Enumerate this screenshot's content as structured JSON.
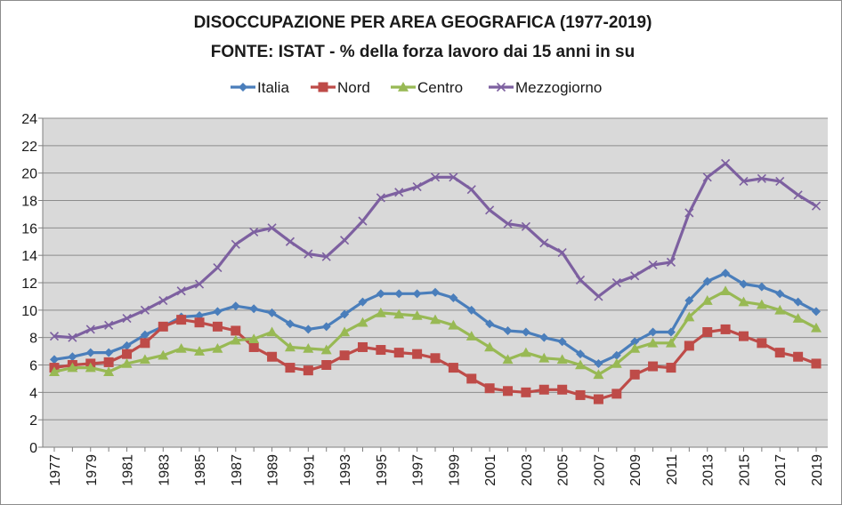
{
  "chart_data": {
    "type": "line",
    "title": "DISOCCUPAZIONE PER AREA GEOGRAFICA (1977-2019)",
    "subtitle": "FONTE: ISTAT - % della forza lavoro dai 15 anni in su",
    "xlabel": "",
    "ylabel": "",
    "ylim": [
      0,
      24
    ],
    "ytick_step": 2,
    "grid": true,
    "legend_position": "top",
    "x": [
      1977,
      1978,
      1979,
      1980,
      1981,
      1982,
      1983,
      1984,
      1985,
      1986,
      1987,
      1988,
      1989,
      1990,
      1991,
      1992,
      1993,
      1994,
      1995,
      1996,
      1997,
      1998,
      1999,
      2000,
      2001,
      2002,
      2003,
      2004,
      2005,
      2006,
      2007,
      2008,
      2009,
      2010,
      2011,
      2012,
      2013,
      2014,
      2015,
      2016,
      2017,
      2018,
      2019
    ],
    "x_tick_labels": [
      "1977",
      "1979",
      "1981",
      "1983",
      "1985",
      "1987",
      "1989",
      "1991",
      "1993",
      "1995",
      "1997",
      "1999",
      "2001",
      "2003",
      "2005",
      "2007",
      "2009",
      "2011",
      "2013",
      "2015",
      "2017",
      "2019"
    ],
    "series": [
      {
        "name": "Italia",
        "color": "#4a7ebb",
        "marker": "diamond",
        "values": [
          6.4,
          6.6,
          6.9,
          6.9,
          7.4,
          8.2,
          8.8,
          9.5,
          9.6,
          9.9,
          10.3,
          10.1,
          9.8,
          9.0,
          8.6,
          8.8,
          9.7,
          10.6,
          11.2,
          11.2,
          11.2,
          11.3,
          10.9,
          10.0,
          9.0,
          8.5,
          8.4,
          8.0,
          7.7,
          6.8,
          6.1,
          6.7,
          7.7,
          8.4,
          8.4,
          10.7,
          12.1,
          12.7,
          11.9,
          11.7,
          11.2,
          10.6,
          9.9
        ]
      },
      {
        "name": "Nord",
        "color": "#be4b48",
        "marker": "square",
        "values": [
          5.8,
          6.0,
          6.1,
          6.2,
          6.8,
          7.6,
          8.8,
          9.3,
          9.1,
          8.8,
          8.5,
          7.3,
          6.6,
          5.8,
          5.6,
          6.0,
          6.7,
          7.3,
          7.1,
          6.9,
          6.8,
          6.5,
          5.8,
          5.0,
          4.3,
          4.1,
          4.0,
          4.2,
          4.2,
          3.8,
          3.5,
          3.9,
          5.3,
          5.9,
          5.8,
          7.4,
          8.4,
          8.6,
          8.1,
          7.6,
          6.9,
          6.6,
          6.1
        ]
      },
      {
        "name": "Centro",
        "color": "#98b954",
        "marker": "triangle",
        "values": [
          5.5,
          5.8,
          5.8,
          5.5,
          6.1,
          6.4,
          6.7,
          7.2,
          7.0,
          7.2,
          7.8,
          7.9,
          8.4,
          7.3,
          7.2,
          7.1,
          8.4,
          9.1,
          9.8,
          9.7,
          9.6,
          9.3,
          8.9,
          8.1,
          7.3,
          6.4,
          6.9,
          6.5,
          6.4,
          6.0,
          5.3,
          6.1,
          7.2,
          7.6,
          7.6,
          9.5,
          10.7,
          11.4,
          10.6,
          10.4,
          10.0,
          9.4,
          8.7
        ]
      },
      {
        "name": "Mezzogiorno",
        "color": "#7d60a0",
        "marker": "x",
        "values": [
          8.1,
          8.0,
          8.6,
          8.9,
          9.4,
          10.0,
          10.7,
          11.4,
          11.9,
          13.1,
          14.8,
          15.7,
          16.0,
          15.0,
          14.1,
          13.9,
          15.1,
          16.5,
          18.2,
          18.6,
          19.0,
          19.7,
          19.7,
          18.8,
          17.3,
          16.3,
          16.1,
          14.9,
          14.2,
          12.2,
          11.0,
          12.0,
          12.5,
          13.3,
          13.5,
          17.1,
          19.7,
          20.7,
          19.4,
          19.6,
          19.4,
          18.4,
          17.6
        ]
      }
    ]
  }
}
